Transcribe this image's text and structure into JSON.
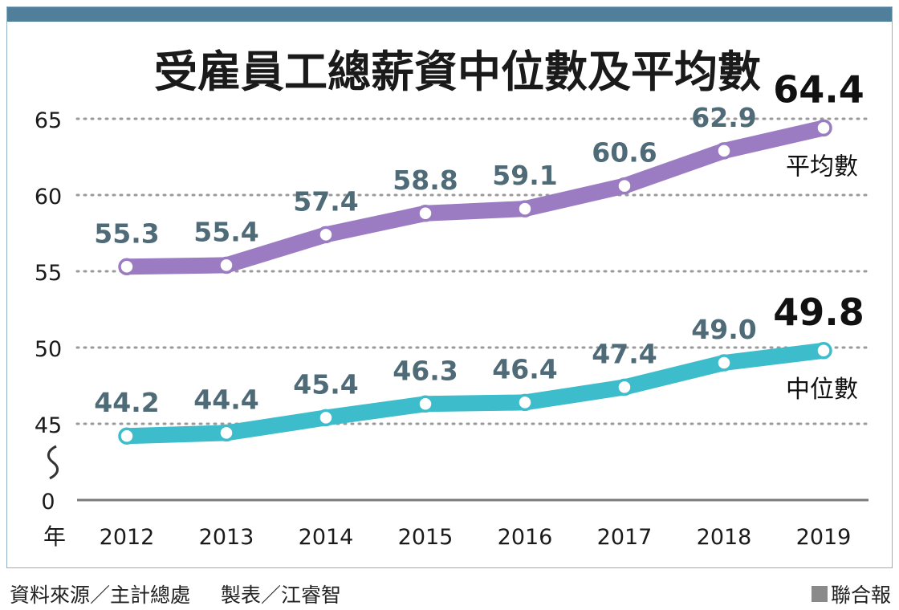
{
  "chart_data": {
    "type": "line",
    "title": "受雇員工總薪資中位數及平均數",
    "categories": [
      "2012",
      "2013",
      "2014",
      "2015",
      "2016",
      "2017",
      "2018",
      "2019"
    ],
    "x_axis_unit": "年",
    "y_ticks": [
      0,
      45,
      50,
      55,
      60,
      65
    ],
    "y_break": true,
    "grid": "dotted-horizontal",
    "series": [
      {
        "name": "平均數",
        "color": "#9b7cc2",
        "values": [
          55.3,
          55.4,
          57.4,
          58.8,
          59.1,
          60.6,
          62.9,
          64.4
        ],
        "labels": [
          "55.3",
          "55.4",
          "57.4",
          "58.8",
          "59.1",
          "60.6",
          "62.9",
          "64.4"
        ]
      },
      {
        "name": "中位數",
        "color": "#3dbccb",
        "values": [
          44.2,
          44.4,
          45.4,
          46.3,
          46.4,
          47.4,
          49.0,
          49.8
        ],
        "labels": [
          "44.2",
          "44.4",
          "45.4",
          "46.3",
          "46.4",
          "47.4",
          "49.0",
          "49.8"
        ]
      }
    ]
  },
  "footer": {
    "source": "資料來源／主計總處",
    "maker": "製表／江睿智",
    "brand": "聯合報"
  },
  "colors": {
    "frame_bar": "#4f7f9b",
    "label_text": "#4f6b78",
    "highlight_text": "#111111"
  }
}
